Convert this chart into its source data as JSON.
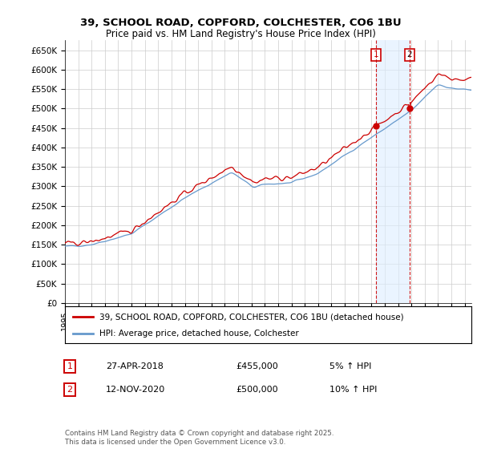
{
  "title_line1": "39, SCHOOL ROAD, COPFORD, COLCHESTER, CO6 1BU",
  "title_line2": "Price paid vs. HM Land Registry's House Price Index (HPI)",
  "ylabel_ticks": [
    "£0",
    "£50K",
    "£100K",
    "£150K",
    "£200K",
    "£250K",
    "£300K",
    "£350K",
    "£400K",
    "£450K",
    "£500K",
    "£550K",
    "£600K",
    "£650K"
  ],
  "ytick_values": [
    0,
    50000,
    100000,
    150000,
    200000,
    250000,
    300000,
    350000,
    400000,
    450000,
    500000,
    550000,
    600000,
    650000
  ],
  "ylim": [
    0,
    675000
  ],
  "xlim_start": 1995.0,
  "xlim_end": 2025.5,
  "red_line_label": "39, SCHOOL ROAD, COPFORD, COLCHESTER, CO6 1BU (detached house)",
  "blue_line_label": "HPI: Average price, detached house, Colchester",
  "transaction1_date": "27-APR-2018",
  "transaction1_price": "£455,000",
  "transaction1_hpi": "5% ↑ HPI",
  "transaction2_date": "12-NOV-2020",
  "transaction2_price": "£500,000",
  "transaction2_hpi": "10% ↑ HPI",
  "vline1_x": 2018.32,
  "vline2_x": 2020.87,
  "marker1_y_red": 455000,
  "marker2_y_red": 500000,
  "footnote": "Contains HM Land Registry data © Crown copyright and database right 2025.\nThis data is licensed under the Open Government Licence v3.0.",
  "background_color": "#ffffff",
  "grid_color": "#cccccc",
  "red_color": "#cc0000",
  "blue_color": "#6699cc",
  "shade_color": "#ddeeff"
}
